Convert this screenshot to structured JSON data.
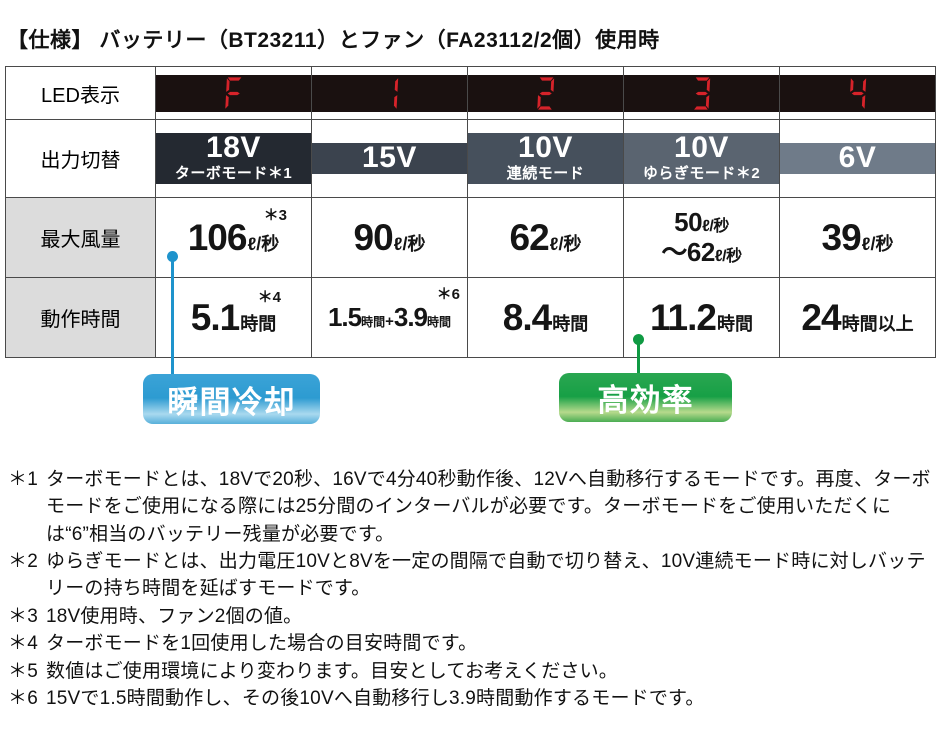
{
  "title": "【仕様】 バッテリー（BT23211）とファン（FA23112/2個）使用時",
  "colors": {
    "highlight_red": "#e60012",
    "led_red": "#d6232a",
    "led_bg": "#1a1110",
    "callout_blue": "#2d9bd1",
    "callout_green": "#17a046",
    "header_gray": "#dcdcdc"
  },
  "table": {
    "row_headers": [
      "LED表示",
      "出力切替",
      "最大風量",
      "動作時間"
    ],
    "led": [
      "F",
      "1",
      "2",
      "3",
      "4"
    ],
    "modes": [
      {
        "voltage": "18V",
        "label": "ターボモード＊1",
        "bg": "#242931"
      },
      {
        "voltage": "15V",
        "label": "",
        "bg": "#3b434e"
      },
      {
        "voltage": "10V",
        "label": "連続モード",
        "bg": "#46505c"
      },
      {
        "voltage": "10V",
        "label": "ゆらぎモード＊2",
        "bg": "#5a6470"
      },
      {
        "voltage": "6V",
        "label": "",
        "bg": "#6f7b89"
      }
    ],
    "airflow": [
      {
        "sup": "＊3",
        "value": "106",
        "unit": "ℓ/秒"
      },
      {
        "value": "90",
        "unit": "ℓ/秒"
      },
      {
        "value": "62",
        "unit": "ℓ/秒"
      },
      {
        "line1_value": "50",
        "line1_unit": "ℓ/秒",
        "line2_value": "～62",
        "line2_unit": "ℓ/秒"
      },
      {
        "value": "39",
        "unit": "ℓ/秒"
      }
    ],
    "duration": [
      {
        "sup": "＊4",
        "value": "5.1",
        "unit": "時間"
      },
      {
        "sup": "＊6",
        "num1": "1.5",
        "unit1": "時間",
        "plus": "+",
        "num2": "3.9",
        "unit2": "時間"
      },
      {
        "value": "8.4",
        "unit": "時間"
      },
      {
        "value": "11.2",
        "unit": "時間"
      },
      {
        "value": "24",
        "unit": "時間以上"
      }
    ]
  },
  "callouts": {
    "instant_cooling": {
      "label": "瞬間冷却",
      "color": "#2d9bd1"
    },
    "high_efficiency": {
      "label": "高効率",
      "color": "#17a046"
    }
  },
  "footnotes": [
    {
      "marker": "＊1",
      "text": "ターボモードとは、18Vで20秒、16Vで4分40秒動作後、12Vへ自動移行するモードです。再度、ターボモードをご使用になる際には25分間のインターバルが必要です。ターボモードをご使用いただくには“6”相当のバッテリー残量が必要です。"
    },
    {
      "marker": "＊2",
      "text": "ゆらぎモードとは、出力電圧10Vと8Vを一定の間隔で自動で切り替え、10V連続モード時に対しバッテリーの持ち時間を延ばすモードです。"
    },
    {
      "marker": "＊3",
      "text": "18V使用時、ファン2個の値。"
    },
    {
      "marker": "＊4",
      "text": "ターボモードを1回使用した場合の目安時間です。"
    },
    {
      "marker": "＊5",
      "text": "数値はご使用環境により変わります。目安としてお考えください。"
    },
    {
      "marker": "＊6",
      "text": "15Vで1.5時間動作し、その後10Vへ自動移行し3.9時間動作するモードです。"
    }
  ]
}
